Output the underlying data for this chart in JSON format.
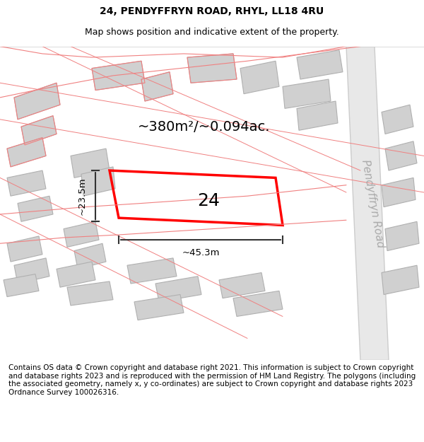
{
  "title_line1": "24, PENDYFFRYN ROAD, RHYL, LL18 4RU",
  "title_line2": "Map shows position and indicative extent of the property.",
  "footer_text": "Contains OS data © Crown copyright and database right 2021. This information is subject to Crown copyright and database rights 2023 and is reproduced with the permission of HM Land Registry. The polygons (including the associated geometry, namely x, y co-ordinates) are subject to Crown copyright and database rights 2023 Ordnance Survey 100026316.",
  "area_label": "~380m²/~0.094ac.",
  "number_label": "24",
  "width_label": "~45.3m",
  "height_label": "~23.5m",
  "road_label": "Pendyffryn Road",
  "bg_color": "#f5f5f5",
  "map_bg": "#f8f8f8",
  "property_color": "#ff0000",
  "building_fill": "#d8d8d8",
  "building_edge": "#bbbbbb",
  "road_fill": "#ffffff",
  "road_stroke": "#c0c0c0",
  "pink_line_color": "#f08080",
  "dim_color": "#333333",
  "title_fontsize": 10,
  "subtitle_fontsize": 9,
  "footer_fontsize": 7.5,
  "label_fontsize": 14,
  "number_fontsize": 18,
  "road_label_fontsize": 11
}
